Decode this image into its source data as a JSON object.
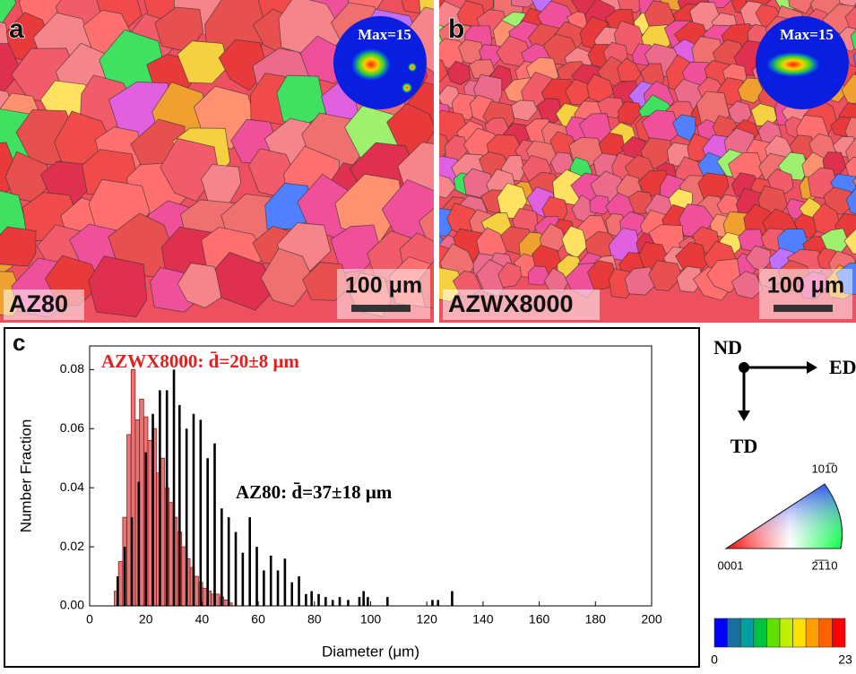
{
  "panels": [
    {
      "letter": "a",
      "sample": "AZ80",
      "scale_bar": "100 μm",
      "pole_figure_max": "Max=15"
    },
    {
      "letter": "b",
      "sample": "AZWX8000",
      "scale_bar": "100 μm",
      "pole_figure_max": "Max=15"
    }
  ],
  "chart_data": {
    "type": "bar",
    "letter": "c",
    "xlabel": "Diameter (μm)",
    "ylabel": "Number Fraction",
    "xlim": [
      0,
      200
    ],
    "ylim": [
      0,
      0.088
    ],
    "xticks": [
      0,
      20,
      40,
      60,
      80,
      100,
      120,
      140,
      160,
      180,
      200
    ],
    "yticks": [
      {
        "value": 0,
        "label": "0.00"
      },
      {
        "value": 0.02,
        "label": "0.02"
      },
      {
        "value": 0.04,
        "label": "0.04"
      },
      {
        "value": 0.06,
        "label": "0.06"
      },
      {
        "value": 0.08,
        "label": "0.08"
      }
    ],
    "series": [
      {
        "color": "#000000",
        "x": [
          10,
          12.5,
          15,
          17.5,
          20,
          22.5,
          25,
          27.5,
          30,
          32,
          34.5,
          37,
          39.5,
          42,
          44.5,
          47,
          49.5,
          52,
          54.5,
          57,
          59.5,
          62,
          64.5,
          67,
          69.5,
          72,
          74.5,
          77,
          79,
          81.5,
          84,
          86.5,
          89,
          92,
          96,
          97.5,
          99,
          106,
          122,
          124,
          129
        ],
        "values": [
          0.01,
          0.02,
          0.03,
          0.042,
          0.052,
          0.065,
          0.073,
          0.073,
          0.08,
          0.068,
          0.06,
          0.065,
          0.063,
          0.05,
          0.055,
          0.033,
          0.03,
          0.025,
          0.018,
          0.03,
          0.02,
          0.012,
          0.017,
          0.012,
          0.016,
          0.008,
          0.01,
          0.004,
          0.005,
          0.004,
          0.003,
          0.002,
          0.003,
          0.002,
          0.003,
          0.005,
          0.003,
          0.003,
          0.002,
          0.002,
          0.005
        ]
      },
      {
        "color": "#e07878",
        "x": [
          9.5,
          11,
          12.5,
          14,
          15.5,
          17,
          18.5,
          20,
          21.5,
          23,
          24.5,
          26,
          27.5,
          29,
          30.5,
          32,
          33.5,
          35,
          36.5,
          38,
          39.5,
          41,
          42.5,
          44,
          45.5,
          47,
          48.5,
          50
        ],
        "values": [
          0.005,
          0.015,
          0.03,
          0.058,
          0.08,
          0.063,
          0.07,
          0.064,
          0.056,
          0.06,
          0.045,
          0.05,
          0.04,
          0.035,
          0.03,
          0.025,
          0.02,
          0.016,
          0.013,
          0.01,
          0.008,
          0.006,
          0.005,
          0.004,
          0.004,
          0.003,
          0.002,
          0.001
        ]
      }
    ],
    "annotations": [
      {
        "text": "AZWX8000: d̄=20±8 μm",
        "color": "#e0201e"
      },
      {
        "text": "AZ80: d̄=37±18 μm",
        "color": "#000000"
      }
    ]
  },
  "legend_key": {
    "axes": [
      "ND",
      "ED",
      "TD"
    ],
    "ipf_labels": [
      "0001",
      "101̅0",
      "2̅1̅10"
    ],
    "colorbar": {
      "colors": [
        "#0000ff",
        "#1a6fa0",
        "#00a0a0",
        "#00c040",
        "#60e000",
        "#c0f000",
        "#ffe000",
        "#ffa000",
        "#ff6000",
        "#ff0000"
      ],
      "ticks": [
        0,
        23
      ]
    }
  }
}
